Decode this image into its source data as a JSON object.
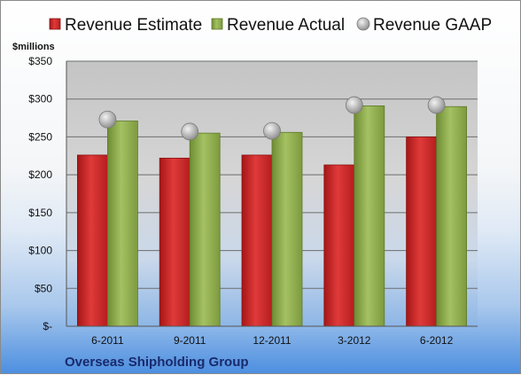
{
  "chart_data": {
    "type": "bar",
    "title": "",
    "ylabel": "$millions",
    "company": "Overseas Shipholding Group",
    "categories": [
      "6-2011",
      "9-2011",
      "12-2011",
      "3-2012",
      "6-2012"
    ],
    "series": [
      {
        "name": "Revenue Estimate",
        "kind": "bar",
        "color": "#d42a2a",
        "values": [
          226,
          222,
          226,
          213,
          250
        ]
      },
      {
        "name": "Revenue Actual",
        "kind": "bar",
        "color": "#8fae4c",
        "values": [
          271,
          255,
          256,
          291,
          290
        ]
      },
      {
        "name": "Revenue GAAP",
        "kind": "marker",
        "color": "#b0b0b0",
        "values": [
          273,
          257,
          258,
          292,
          292
        ]
      }
    ],
    "ylim": [
      0,
      350
    ],
    "yticks": [
      0,
      50,
      100,
      150,
      200,
      250,
      300,
      350
    ],
    "ytick_labels": [
      "$-",
      "$50",
      "$100",
      "$150",
      "$200",
      "$250",
      "$300",
      "$350"
    ],
    "grid": true,
    "legend_position": "top"
  }
}
